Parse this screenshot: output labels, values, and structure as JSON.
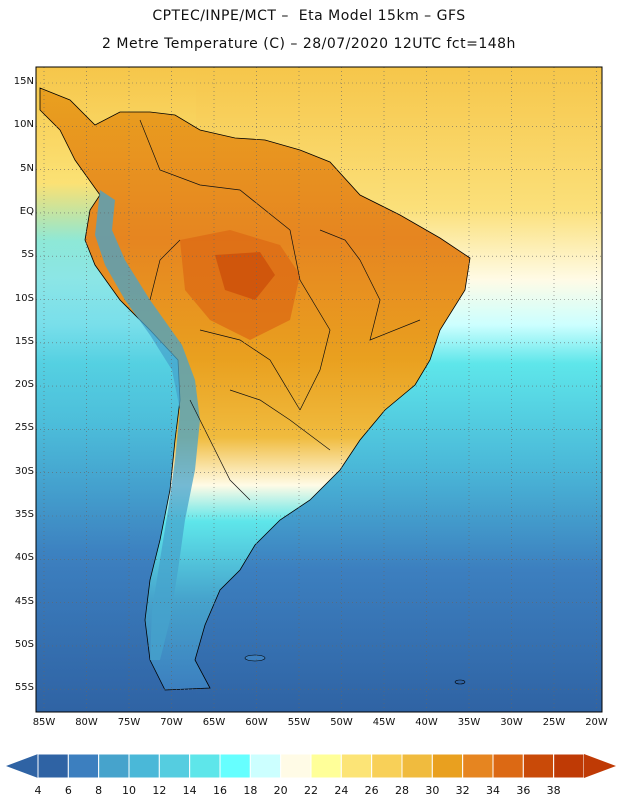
{
  "header": {
    "line1": "CPTEC/INPE/MCT –  Eta Model 15km – GFS",
    "line2": "2 Metre Temperature (C) – 28/07/2020 12UTC fct=148h"
  },
  "axes": {
    "latitudes": [
      "15N",
      "10N",
      "5N",
      "EQ",
      "5S",
      "10S",
      "15S",
      "20S",
      "25S",
      "30S",
      "35S",
      "40S",
      "45S",
      "50S",
      "55S"
    ],
    "longitudes": [
      "85W",
      "80W",
      "75W",
      "70W",
      "65W",
      "60W",
      "55W",
      "50W",
      "45W",
      "40W",
      "35W",
      "30W",
      "25W",
      "20W"
    ]
  },
  "colorbar": {
    "labels": [
      "4",
      "6",
      "8",
      "10",
      "12",
      "14",
      "16",
      "18",
      "20",
      "22",
      "24",
      "26",
      "28",
      "30",
      "32",
      "34",
      "36",
      "38"
    ],
    "colors": [
      "#2f63a4",
      "#3c7fbf",
      "#46a3cc",
      "#4ab8d8",
      "#55cde0",
      "#5ee6ea",
      "#66ffff",
      "#ccffff",
      "#fffbe6",
      "#ffff99",
      "#fce476",
      "#f8d058",
      "#f0bb3e",
      "#e9a01f",
      "#e68520",
      "#dc6914",
      "#c94a08",
      "#bf3a05"
    ],
    "low_color": "#2f63a4",
    "high_color": "#bf3a05"
  }
}
